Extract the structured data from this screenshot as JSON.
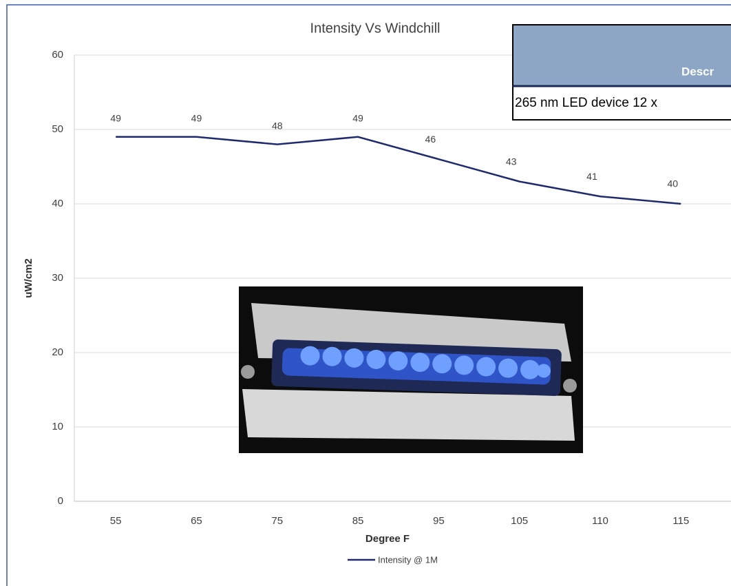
{
  "chart_data": {
    "type": "line",
    "title": "Intensity Vs Windchill",
    "x_label": "Degree F",
    "y_label": "uW/cm2",
    "categories": [
      "55",
      "65",
      "75",
      "85",
      "95",
      "105",
      "110",
      "115"
    ],
    "series": [
      {
        "name": "Intensity @ 1M",
        "color": "#1f2a6b",
        "values": [
          49,
          49,
          48,
          49,
          46,
          43,
          41,
          40
        ]
      }
    ],
    "ylim": [
      0,
      60
    ],
    "yticks": [
      0,
      10,
      20,
      30,
      40,
      50,
      60
    ],
    "grid": true,
    "legend": "bottom"
  },
  "table": {
    "header": [
      "Descr"
    ],
    "rows": [
      [
        "265 nm LED device 12 x"
      ]
    ]
  }
}
